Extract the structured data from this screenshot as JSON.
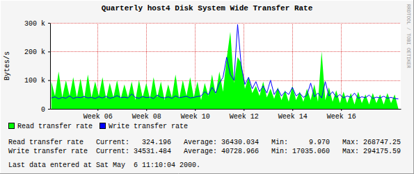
{
  "chart_data": {
    "type": "line",
    "title": "Quarterly host4 Disk System Wide Transfer Rate",
    "y_label": "Bytes/s",
    "credit": "RRDTOOL / TOBI OETIKER",
    "x": [
      4.1,
      4.25,
      4.4,
      4.55,
      4.7,
      4.85,
      5,
      5.15,
      5.3,
      5.45,
      5.6,
      5.75,
      5.9,
      6.05,
      6.2,
      6.35,
      6.5,
      6.65,
      6.8,
      6.95,
      7.1,
      7.25,
      7.4,
      7.55,
      7.7,
      7.85,
      8,
      8.15,
      8.3,
      8.45,
      8.6,
      8.75,
      8.9,
      9.05,
      9.2,
      9.35,
      9.5,
      9.65,
      9.8,
      9.95,
      10.1,
      10.25,
      10.4,
      10.55,
      10.7,
      10.85,
      11,
      11.15,
      11.3,
      11.45,
      11.6,
      11.75,
      11.9,
      12.05,
      12.2,
      12.35,
      12.5,
      12.65,
      12.8,
      12.95,
      13.1,
      13.25,
      13.4,
      13.55,
      13.7,
      13.85,
      14,
      14.15,
      14.3,
      14.45,
      14.6,
      14.75,
      14.9,
      15.05,
      15.2,
      15.35,
      15.5,
      15.65,
      15.8,
      15.95,
      16.1,
      16.25,
      16.4,
      16.55,
      16.7,
      16.85,
      17,
      17.15,
      17.3,
      17.45,
      17.6,
      17.75,
      17.9,
      18.05,
      18.2,
      18.35
    ],
    "series": [
      {
        "name": "Read transfer rate",
        "color": "#00ff00",
        "type": "area",
        "values": [
          95000,
          45000,
          130000,
          40000,
          100000,
          45000,
          110000,
          40000,
          105000,
          35000,
          120000,
          40000,
          95000,
          45000,
          110000,
          35000,
          90000,
          40000,
          100000,
          35000,
          85000,
          40000,
          95000,
          30000,
          100000,
          40000,
          90000,
          35000,
          110000,
          40000,
          95000,
          30000,
          85000,
          40000,
          120000,
          35000,
          100000,
          45000,
          110000,
          40000,
          95000,
          30000,
          90000,
          45000,
          120000,
          50000,
          130000,
          60000,
          175000,
          268747,
          90000,
          180000,
          160000,
          70000,
          110000,
          55000,
          80000,
          45000,
          95000,
          40000,
          70000,
          35000,
          75000,
          30000,
          65000,
          25000,
          80000,
          30000,
          60000,
          25000,
          70000,
          30000,
          85000,
          25000,
          200000,
          30000,
          75000,
          25000,
          65000,
          20000,
          60000,
          20000,
          55000,
          15000,
          60000,
          20000,
          50000,
          15000,
          55000,
          20000,
          50000,
          15000,
          55000,
          20000,
          50000,
          324.196
        ]
      },
      {
        "name": "Write transfer rate",
        "color": "#0000ff",
        "type": "line",
        "values": [
          38000,
          42000,
          35000,
          40000,
          37000,
          45000,
          36000,
          41000,
          39000,
          43000,
          38000,
          40000,
          36000,
          42000,
          38000,
          44000,
          37000,
          40000,
          46000,
          39000,
          41000,
          38000,
          52000,
          40000,
          37000,
          43000,
          39000,
          41000,
          36000,
          48000,
          40000,
          38000,
          42000,
          37000,
          45000,
          39000,
          41000,
          44000,
          38000,
          40000,
          43000,
          45000,
          60000,
          50000,
          75000,
          55000,
          90000,
          110000,
          180000,
          120000,
          100000,
          294175,
          150000,
          85000,
          110000,
          70000,
          95000,
          60000,
          80000,
          55000,
          100000,
          50000,
          70000,
          45000,
          60000,
          50000,
          75000,
          45000,
          55000,
          40000,
          48000,
          90000,
          42000,
          55000,
          38000,
          95000,
          45000,
          60000,
          40000,
          50000,
          38000,
          45000,
          40000,
          55000,
          37000,
          42000,
          39000,
          48000,
          36000,
          41000,
          38000,
          44000,
          37000,
          40000,
          36000,
          34531.484
        ]
      }
    ],
    "xlim": [
      4.05,
      18.45
    ],
    "xticks": [
      {
        "value": 6,
        "label": "Week 06"
      },
      {
        "value": 8,
        "label": "Week 08"
      },
      {
        "value": 10,
        "label": "Week 10"
      },
      {
        "value": 12,
        "label": "Week 12"
      },
      {
        "value": 14,
        "label": "Week 14"
      },
      {
        "value": 16,
        "label": "Week 16"
      }
    ],
    "ylim": [
      0,
      300000
    ],
    "yticks": [
      0,
      {
        "value": 100000,
        "label": "100 k"
      },
      {
        "value": 200000,
        "label": "200 k"
      },
      {
        "value": 300000,
        "label": "300 k"
      }
    ],
    "grid": true,
    "legend": "bottom-left",
    "stats": {
      "labels": [
        "Current:",
        "Average:",
        "Min:",
        "Max:"
      ],
      "rows": [
        {
          "values": [
            "324.196",
            "36430.034",
            "9.970",
            "268747.25"
          ]
        },
        {
          "values": [
            "34531.484",
            "40728.966",
            "17035.060",
            "294175.59"
          ]
        }
      ]
    },
    "footer": "Last data entered at Sat May  6 11:10:04 2000."
  }
}
